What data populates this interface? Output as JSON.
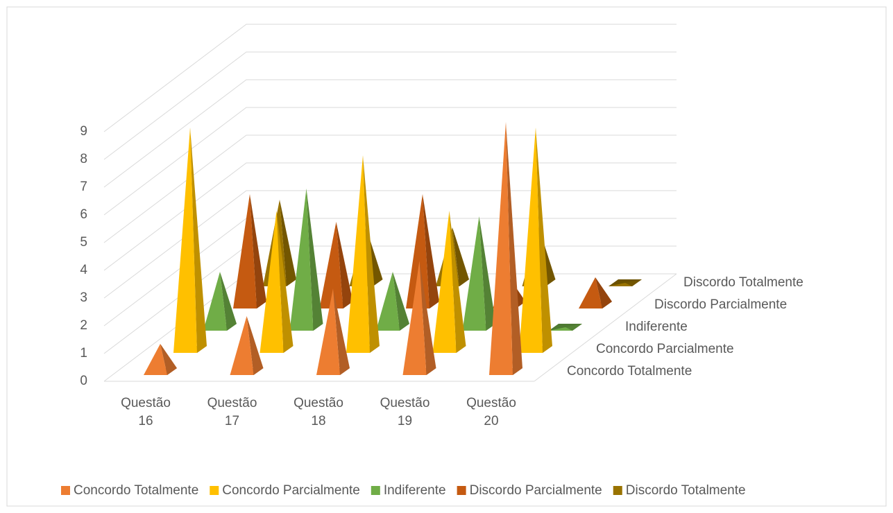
{
  "chart_data": {
    "type": "pyramid3d",
    "categories": [
      "Questão 16",
      "Questão 17",
      "Questão 18",
      "Questão 19",
      "Questão 20"
    ],
    "series": [
      {
        "name": "Concordo Totalmente",
        "color": "#ED7D31",
        "values": [
          1,
          2,
          3,
          4,
          9
        ]
      },
      {
        "name": "Concordo Parcialmente",
        "color": "#FFC000",
        "values": [
          8,
          5,
          7,
          5,
          8
        ]
      },
      {
        "name": "Indiferente",
        "color": "#70AD47",
        "values": [
          2,
          5,
          2,
          4,
          0
        ]
      },
      {
        "name": "Discordo Parcialmente",
        "color": "#C55A11",
        "values": [
          4,
          3,
          4,
          1,
          1
        ]
      },
      {
        "name": "Discordo Totalmente",
        "color": "#997300",
        "values": [
          3,
          2,
          2,
          2,
          0
        ]
      }
    ],
    "ylim": [
      0,
      9
    ],
    "yticks": [
      0,
      1,
      2,
      3,
      4,
      5,
      6,
      7,
      8,
      9
    ],
    "grid": true,
    "legend": "bottom"
  }
}
